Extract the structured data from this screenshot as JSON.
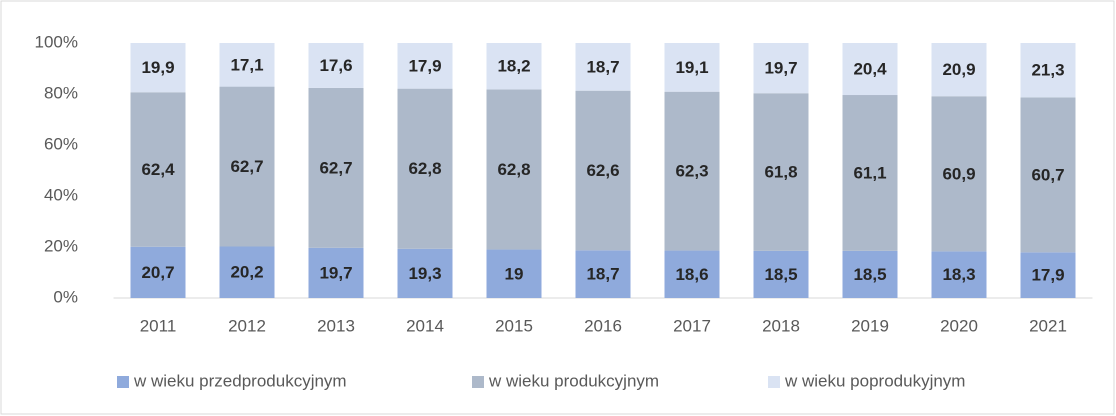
{
  "chart_data": {
    "type": "bar",
    "stacked": "percent",
    "categories": [
      "2011",
      "2012",
      "2013",
      "2014",
      "2015",
      "2016",
      "2017",
      "2018",
      "2019",
      "2020",
      "2021"
    ],
    "series": [
      {
        "name": "w wieku przedprodukcyjnym",
        "color": "#8faadc",
        "values": [
          20.7,
          20.2,
          19.7,
          19.3,
          19,
          18.7,
          18.6,
          18.5,
          18.5,
          18.3,
          17.9
        ],
        "value_labels": [
          "20,7",
          "20,2",
          "19,7",
          "19,3",
          "19",
          "18,7",
          "18,6",
          "18,5",
          "18,5",
          "18,3",
          "17,9"
        ]
      },
      {
        "name": "w wieku produkcyjnym",
        "color": "#adb9ca",
        "values": [
          62.4,
          62.7,
          62.7,
          62.8,
          62.8,
          62.6,
          62.3,
          61.8,
          61.1,
          60.9,
          60.7
        ],
        "value_labels": [
          "62,4",
          "62,7",
          "62,7",
          "62,8",
          "62,8",
          "62,6",
          "62,3",
          "61,8",
          "61,1",
          "60,9",
          "60,7"
        ]
      },
      {
        "name": "w wieku poprodukyjnym",
        "color": "#dae3f3",
        "values": [
          19.9,
          17.1,
          17.6,
          17.9,
          18.2,
          18.7,
          19.1,
          19.7,
          20.4,
          20.9,
          21.3
        ],
        "value_labels": [
          "19,9",
          "17,1",
          "17,6",
          "17,9",
          "18,2",
          "18,7",
          "19,1",
          "19,7",
          "20,4",
          "20,9",
          "21,3"
        ]
      }
    ],
    "ylim": [
      0,
      100
    ],
    "yticks": [
      {
        "value": 0,
        "label": "0%"
      },
      {
        "value": 20,
        "label": "20%"
      },
      {
        "value": 40,
        "label": "40%"
      },
      {
        "value": 60,
        "label": "60%"
      },
      {
        "value": 80,
        "label": "80%"
      },
      {
        "value": 100,
        "label": "100%"
      }
    ],
    "grid": false,
    "legend": "bottom"
  }
}
